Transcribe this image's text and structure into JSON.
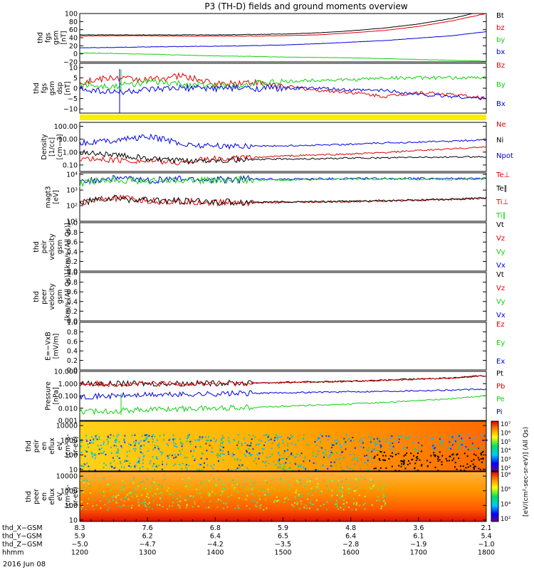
{
  "title": "P3 (TH-D) fields and ground moments overview",
  "date_label": "2016 Jun 08",
  "colors": {
    "black": "#000000",
    "red": "#e00000",
    "green": "#10d010",
    "blue": "#0000e0",
    "yellow": "#ffee00"
  },
  "panels": [
    {
      "id": "fgs-mag",
      "ylabel_lines": [
        "thd",
        "fgs",
        "gsm",
        "[nT]"
      ],
      "ticks": [
        {
          "v": 100,
          "t": "100"
        },
        {
          "v": 80,
          "t": "80"
        },
        {
          "v": 60,
          "t": "60"
        },
        {
          "v": 40,
          "t": "40"
        },
        {
          "v": 20,
          "t": "20"
        },
        {
          "v": 0,
          "t": "0"
        },
        {
          "v": -20,
          "t": "−20"
        }
      ],
      "legend": [
        {
          "label": "Bt",
          "color": "#000000"
        },
        {
          "label": "bz",
          "color": "#e00000"
        },
        {
          "label": "by",
          "color": "#10d010"
        },
        {
          "label": "bx",
          "color": "#0000e0"
        }
      ]
    },
    {
      "id": "fgs-detrended",
      "ylabel_lines": [
        "thd",
        "fgs",
        "gsm",
        "dsp",
        "[nT]"
      ],
      "ticks": [
        {
          "v": 10,
          "t": "10"
        },
        {
          "v": 5,
          "t": "5"
        },
        {
          "v": 0,
          "t": "0"
        },
        {
          "v": -5,
          "t": "−5"
        },
        {
          "v": -10,
          "t": "−10"
        }
      ],
      "legend": [
        {
          "label": "Bz",
          "color": "#e00000"
        },
        {
          "label": "By",
          "color": "#10d010"
        },
        {
          "label": "Bx",
          "color": "#0000e0"
        }
      ]
    },
    {
      "id": "density",
      "ylabel_lines": [
        "Density",
        "[1/cc]",
        "[cm−3]"
      ],
      "ticks": [
        {
          "v": 2,
          "t": "100.00"
        },
        {
          "v": 1,
          "t": "10.00"
        },
        {
          "v": 0,
          "t": "1.00"
        },
        {
          "v": -1,
          "t": "0.10"
        }
      ],
      "legend": [
        {
          "label": "Ne",
          "color": "#e00000"
        },
        {
          "label": "Ni",
          "color": "#000000"
        },
        {
          "label": "Npot",
          "color": "#0000e0"
        }
      ]
    },
    {
      "id": "temperature",
      "ylabel_lines": [
        "magt3",
        "[eV]"
      ],
      "ticks": [
        {
          "v": 4,
          "t": "10⁴"
        },
        {
          "v": 3,
          "t": "10³"
        },
        {
          "v": 2,
          "t": "10²"
        },
        {
          "v": 1,
          "t": "10¹"
        }
      ],
      "legend": [
        {
          "label": "Te⊥",
          "color": "#e00000"
        },
        {
          "label": "Te∥",
          "color": "#000000"
        },
        {
          "label": "Ti⊥",
          "color": "#e00000"
        },
        {
          "label": "Ti∥",
          "color": "#10d010"
        }
      ]
    },
    {
      "id": "ion-velocity",
      "ylabel_lines": [
        "thd",
        "peir",
        "velocity",
        "gsm",
        "[km/s (All Qs)]"
      ],
      "ticks": [
        {
          "v": 1.0,
          "t": "1.0"
        },
        {
          "v": 0.8,
          "t": "0.8"
        },
        {
          "v": 0.6,
          "t": "0.6"
        },
        {
          "v": 0.4,
          "t": "0.4"
        },
        {
          "v": 0.2,
          "t": "0.2"
        },
        {
          "v": 0.0,
          "t": "0.0"
        }
      ],
      "legend": [
        {
          "label": "Vt",
          "color": "#000000"
        },
        {
          "label": "Vz",
          "color": "#e00000"
        },
        {
          "label": "Vy",
          "color": "#10d010"
        },
        {
          "label": "Vx",
          "color": "#0000e0"
        }
      ]
    },
    {
      "id": "electron-velocity",
      "ylabel_lines": [
        "thd",
        "peer",
        "velocity",
        "gsm",
        "[km/s (All Qs)]"
      ],
      "ticks": [
        {
          "v": 1.0,
          "t": "1.0"
        },
        {
          "v": 0.8,
          "t": "0.8"
        },
        {
          "v": 0.6,
          "t": "0.6"
        },
        {
          "v": 0.4,
          "t": "0.4"
        },
        {
          "v": 0.2,
          "t": "0.2"
        },
        {
          "v": 0.0,
          "t": "0.0"
        }
      ],
      "legend": [
        {
          "label": "Vt",
          "color": "#000000"
        },
        {
          "label": "Vz",
          "color": "#e00000"
        },
        {
          "label": "Vy",
          "color": "#10d010"
        },
        {
          "label": "Vx",
          "color": "#0000e0"
        }
      ]
    },
    {
      "id": "efield",
      "ylabel_lines": [
        "E=−VxB",
        "[mV/m]"
      ],
      "ticks": [
        {
          "v": 1.0,
          "t": "1.0"
        },
        {
          "v": 0.8,
          "t": "0.8"
        },
        {
          "v": 0.6,
          "t": "0.6"
        },
        {
          "v": 0.4,
          "t": "0.4"
        },
        {
          "v": 0.2,
          "t": "0.2"
        },
        {
          "v": 0.0,
          "t": "0.0"
        }
      ],
      "legend": [
        {
          "label": "Ez",
          "color": "#e00000"
        },
        {
          "label": "Ey",
          "color": "#10d010"
        },
        {
          "label": "Ex",
          "color": "#0000e0"
        }
      ]
    },
    {
      "id": "pressure",
      "ylabel_lines": [
        "Pressure",
        "[nPa]"
      ],
      "ticks": [
        {
          "v": 1,
          "t": "10.000"
        },
        {
          "v": 0,
          "t": "1.000"
        },
        {
          "v": -1,
          "t": "0.100"
        },
        {
          "v": -2,
          "t": "0.010"
        },
        {
          "v": -3,
          "t": "0.001"
        }
      ],
      "legend": [
        {
          "label": "Pt",
          "color": "#000000"
        },
        {
          "label": "Pb",
          "color": "#e00000"
        },
        {
          "label": "Pe",
          "color": "#10d010"
        },
        {
          "label": "Pi",
          "color": "#0000e0"
        }
      ]
    },
    {
      "id": "ion-spectrogram",
      "ylabel_lines": [
        "thd",
        "peir",
        "en",
        "eflux",
        "eV",
        "(cm²-s-",
        "sr-eV)"
      ],
      "ticks": [
        {
          "v": 4,
          "t": "10000"
        },
        {
          "v": 3,
          "t": "1000"
        },
        {
          "v": 2,
          "t": "100"
        },
        {
          "v": 1,
          "t": "10"
        }
      ]
    },
    {
      "id": "electron-spectrogram",
      "ylabel_lines": [
        "thd",
        "peer",
        "en",
        "eflux",
        "eV",
        "(cm²-s-",
        "sr-eV)"
      ],
      "ticks": [
        {
          "v": 4,
          "t": "10000"
        },
        {
          "v": 3,
          "t": "1000"
        },
        {
          "v": 2,
          "t": "100"
        },
        {
          "v": 1,
          "t": "10"
        }
      ]
    }
  ],
  "colorbars": [
    {
      "id": "ion-colorbar",
      "ticks": [
        "10⁷",
        "10⁶",
        "10⁵",
        "10⁴",
        "10³",
        "10²"
      ],
      "label": "[eV/(cm²-sec-sr-eV)] (All Qs)"
    },
    {
      "id": "electron-colorbar",
      "ticks": [
        "10⁸",
        "10⁶",
        "10⁴",
        "10²"
      ],
      "label": "[eV/(cm²-sec-sr-eV)] (All Qs)"
    }
  ],
  "axis_rows": [
    {
      "label": "thd_X−GSM",
      "values": [
        "8.3",
        "7.6",
        "6.8",
        "5.9",
        "4.8",
        "3.6",
        "2.1"
      ]
    },
    {
      "label": "thd_Y−GSM",
      "values": [
        "5.9",
        "6.2",
        "6.4",
        "6.5",
        "6.4",
        "6.1",
        "5.4"
      ]
    },
    {
      "label": "thd_Z−GSM",
      "values": [
        "−5.0",
        "−4.7",
        "−4.2",
        "−3.5",
        "−2.8",
        "−1.9",
        "−1.0"
      ]
    },
    {
      "label": "hhmm",
      "values": [
        "1200",
        "1300",
        "1400",
        "1500",
        "1600",
        "1700",
        "1800"
      ]
    }
  ],
  "chart_data": [
    {
      "type": "line",
      "title": "P3 (TH-D) fields and ground moments overview",
      "ylabel": "thd fgs gsm [nT]",
      "x": [
        1200,
        1230,
        1300,
        1330,
        1400,
        1430,
        1500,
        1530,
        1600,
        1630,
        1700,
        1730,
        1800
      ],
      "ylim": [
        -20,
        100
      ],
      "grid": false,
      "series": [
        {
          "name": "Bt",
          "values": [
            47,
            47,
            47,
            47,
            47,
            48,
            49,
            52,
            57,
            64,
            74,
            88,
            108
          ]
        },
        {
          "name": "bz",
          "values": [
            44,
            45,
            45,
            44,
            44,
            44,
            45,
            47,
            52,
            58,
            68,
            82,
            100
          ]
        },
        {
          "name": "by",
          "values": [
            15,
            16,
            17,
            18,
            19,
            20,
            22,
            25,
            29,
            33,
            39,
            45,
            55
          ]
        },
        {
          "name": "bx",
          "values": [
            2,
            1,
            -1,
            -3,
            -5,
            -6,
            -8,
            -9,
            -10,
            -12,
            -14,
            -16,
            -18
          ]
        }
      ]
    },
    {
      "type": "line",
      "ylabel": "thd fgs gsm dsp [nT]",
      "x": [
        1200,
        1230,
        1300,
        1330,
        1400,
        1430,
        1500,
        1530,
        1600,
        1630,
        1700,
        1730,
        1800
      ],
      "ylim": [
        -12,
        12
      ],
      "series": [
        {
          "name": "Bz",
          "values": [
            3,
            5,
            4,
            6,
            2,
            3,
            1,
            -1,
            -2,
            -4,
            -2,
            -3,
            -5
          ]
        },
        {
          "name": "By",
          "values": [
            2,
            1,
            3,
            2,
            1,
            2,
            3,
            4,
            4,
            5,
            5,
            5,
            5
          ]
        },
        {
          "name": "Bx",
          "values": [
            0,
            -2,
            -1,
            0,
            0,
            0,
            0,
            0,
            -1,
            -1,
            -3,
            -4,
            -5
          ]
        }
      ]
    },
    {
      "type": "line",
      "ylabel": "Density [1/cc] [cm−3]",
      "yscale": "log",
      "x": [
        1200,
        1230,
        1300,
        1330,
        1400,
        1430,
        1500,
        1530,
        1600,
        1630,
        1700,
        1730,
        1800
      ],
      "ylim": [
        0.03,
        200
      ],
      "series": [
        {
          "name": "Ne",
          "values": [
            0.3,
            0.25,
            0.2,
            0.15,
            0.3,
            0.35,
            0.5,
            0.6,
            0.7,
            0.9,
            1.3,
            1.8,
            2.5
          ]
        },
        {
          "name": "Ni",
          "values": [
            1.0,
            0.6,
            0.3,
            0.2,
            0.25,
            0.25,
            0.3,
            0.3,
            0.35,
            0.35,
            0.4,
            0.4,
            0.45
          ]
        },
        {
          "name": "Npot",
          "values": [
            5,
            8,
            15,
            4,
            3,
            3,
            3,
            3.5,
            4,
            5,
            6,
            7,
            9
          ]
        }
      ]
    },
    {
      "type": "line",
      "ylabel": "magt3 [eV]",
      "yscale": "log",
      "x": [
        1200,
        1230,
        1300,
        1330,
        1400,
        1430,
        1500,
        1530,
        1600,
        1630,
        1700,
        1730,
        1800
      ],
      "ylim": [
        10,
        10000
      ],
      "series": [
        {
          "name": "Te⊥",
          "values": [
            150,
            300,
            200,
            180,
            160,
            160,
            160,
            170,
            180,
            200,
            220,
            250,
            300
          ]
        },
        {
          "name": "Te∥",
          "values": [
            160,
            310,
            210,
            190,
            170,
            170,
            170,
            180,
            190,
            210,
            230,
            260,
            310
          ]
        },
        {
          "name": "Ti⊥",
          "values": [
            3000,
            6000,
            4000,
            5000,
            4500,
            5000,
            5000,
            5200,
            5500,
            5500,
            5500,
            5500,
            5500
          ]
        },
        {
          "name": "Ti∥",
          "values": [
            2500,
            5000,
            3500,
            4500,
            4000,
            4500,
            4500,
            4700,
            5000,
            5000,
            5000,
            5000,
            5000
          ]
        }
      ]
    },
    {
      "type": "line",
      "ylabel": "Pressure [nPa]",
      "yscale": "log",
      "x": [
        1200,
        1230,
        1300,
        1330,
        1400,
        1430,
        1500,
        1530,
        1600,
        1630,
        1700,
        1730,
        1800
      ],
      "ylim": [
        0.001,
        10
      ],
      "series": [
        {
          "name": "Pt",
          "values": [
            1.0,
            1.0,
            1.0,
            1.05,
            1.1,
            1.15,
            1.25,
            1.4,
            1.6,
            1.9,
            2.4,
            3.0,
            4.5
          ]
        },
        {
          "name": "Pb",
          "values": [
            0.95,
            0.95,
            0.95,
            1.0,
            1.05,
            1.1,
            1.2,
            1.35,
            1.55,
            1.85,
            2.3,
            2.9,
            4.3
          ]
        },
        {
          "name": "Pe",
          "values": [
            0.005,
            0.006,
            0.008,
            0.009,
            0.01,
            0.012,
            0.014,
            0.018,
            0.022,
            0.03,
            0.04,
            0.06,
            0.1
          ]
        },
        {
          "name": "Pi",
          "values": [
            0.09,
            0.1,
            0.12,
            0.13,
            0.15,
            0.16,
            0.18,
            0.2,
            0.22,
            0.24,
            0.27,
            0.3,
            0.35
          ]
        }
      ]
    }
  ]
}
